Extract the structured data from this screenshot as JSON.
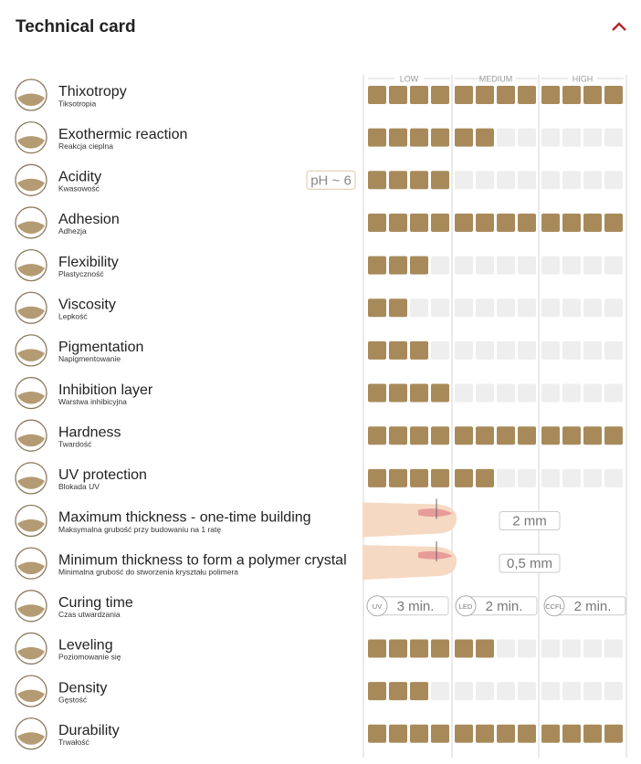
{
  "header": {
    "title": "Technical card"
  },
  "scale": {
    "labels": [
      "LOW",
      "MEDIUM",
      "HIGH"
    ],
    "levels": 12
  },
  "rows": [
    {
      "name": "Thixotropy",
      "subtitle": "Tiksotropia",
      "level": 12
    },
    {
      "name": "Exothermic reaction",
      "subtitle": "Reakcja cieplna",
      "level": 6
    },
    {
      "name": "Acidity",
      "subtitle": "Kwasowość",
      "badge": "pH ~ 6",
      "level": 4
    },
    {
      "name": "Adhesion",
      "subtitle": "Adhezja",
      "level": 12
    },
    {
      "name": "Flexibility",
      "subtitle": "Plastyczność",
      "level": 3
    },
    {
      "name": "Viscosity",
      "subtitle": "Lepkość",
      "level": 2
    },
    {
      "name": "Pigmentation",
      "subtitle": "Napigmentowanie",
      "level": 3
    },
    {
      "name": "Inhibition layer",
      "subtitle": "Warstwa inhibicyjna",
      "level": 4
    },
    {
      "name": "Hardness",
      "subtitle": "Twardość",
      "level": 12
    },
    {
      "name": "UV protection",
      "subtitle": "Blokada UV",
      "level": 6
    },
    {
      "name": "Maximum thickness - one-time building",
      "subtitle": "Maksymalna grubość przy budowaniu na 1 ratę",
      "value": "2 mm"
    },
    {
      "name": "Minimum thickness to form a polymer crystal",
      "subtitle": "Minimalna grubość do stworzenia kryształu polimera",
      "value": "0,5 mm"
    },
    {
      "name": "Curing time",
      "subtitle": "Czas utwardzania",
      "times": [
        {
          "lamp": "UV",
          "value": "3 min."
        },
        {
          "lamp": "LED",
          "value": "2 min."
        },
        {
          "lamp": "CCFL",
          "value": "2 min."
        }
      ]
    },
    {
      "name": "Leveling",
      "subtitle": "Poziomowanie się",
      "level": 6
    },
    {
      "name": "Density",
      "subtitle": "Gęstość",
      "level": 3
    },
    {
      "name": "Durability",
      "subtitle": "Trwałość",
      "level": 12
    }
  ]
}
